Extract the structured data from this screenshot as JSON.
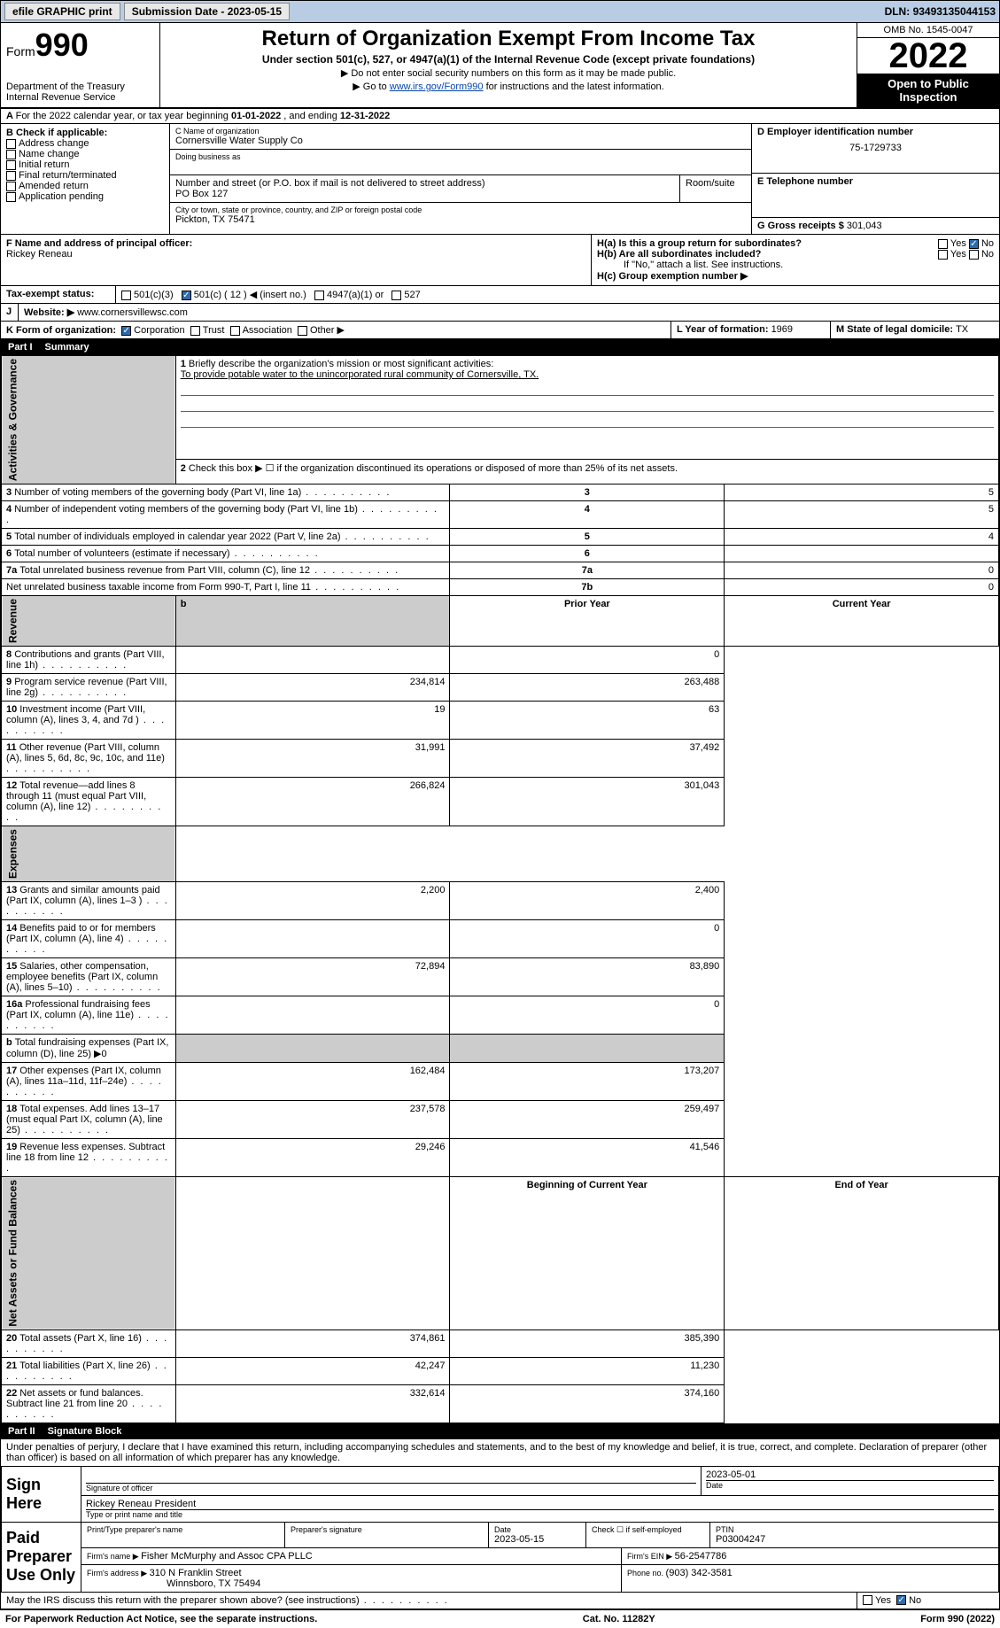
{
  "topbar": {
    "efile": "efile GRAPHIC print",
    "subdate_lbl": "Submission Date - ",
    "subdate": "2023-05-15",
    "dln_lbl": "DLN: ",
    "dln": "93493135044153"
  },
  "header": {
    "form_pre": "Form",
    "form_num": "990",
    "dept": "Department of the Treasury",
    "irs": "Internal Revenue Service",
    "title": "Return of Organization Exempt From Income Tax",
    "sub": "Under section 501(c), 527, or 4947(a)(1) of the Internal Revenue Code (except private foundations)",
    "note1": "▶ Do not enter social security numbers on this form as it may be made public.",
    "note2_pre": "▶ Go to ",
    "note2_link": "www.irs.gov/Form990",
    "note2_post": " for instructions and the latest information.",
    "omb": "OMB No. 1545-0047",
    "year": "2022",
    "open": "Open to Public Inspection"
  },
  "A": {
    "text": "For the 2022 calendar year, or tax year beginning ",
    "begin": "01-01-2022",
    "mid": " , and ending ",
    "end": "12-31-2022"
  },
  "B": {
    "lbl": "B Check if applicable:",
    "opts": [
      "Address change",
      "Name change",
      "Initial return",
      "Final return/terminated",
      "Amended return",
      "Application pending"
    ]
  },
  "C": {
    "name_lbl": "C Name of organization",
    "name": "Cornersville Water Supply Co",
    "dba_lbl": "Doing business as",
    "addr_lbl": "Number and street (or P.O. box if mail is not delivered to street address)",
    "room_lbl": "Room/suite",
    "addr": "PO Box 127",
    "city_lbl": "City or town, state or province, country, and ZIP or foreign postal code",
    "city": "Pickton, TX  75471"
  },
  "D": {
    "lbl": "D Employer identification number",
    "val": "75-1729733"
  },
  "E": {
    "lbl": "E Telephone number"
  },
  "G": {
    "lbl": "G Gross receipts $ ",
    "val": "301,043"
  },
  "F": {
    "lbl": "F  Name and address of principal officer:",
    "name": "Rickey Reneau"
  },
  "H": {
    "a": "H(a)  Is this a group return for subordinates?",
    "b": "H(b)  Are all subordinates included?",
    "note": "If \"No,\" attach a list. See instructions.",
    "c": "H(c)  Group exemption number ▶",
    "yes": "Yes",
    "no": "No"
  },
  "I": {
    "lbl": "Tax-exempt status:",
    "o1": "501(c)(3)",
    "o2": "501(c) ( 12 ) ◀ (insert no.)",
    "o3": "4947(a)(1) or",
    "o4": "527"
  },
  "J": {
    "lbl": "Website: ▶ ",
    "val": "www.cornersvillewsc.com"
  },
  "K": {
    "lbl": "K Form of organization:",
    "o1": "Corporation",
    "o2": "Trust",
    "o3": "Association",
    "o4": "Other ▶"
  },
  "L": {
    "lbl": "L Year of formation: ",
    "val": "1969"
  },
  "M": {
    "lbl": "M State of legal domicile: ",
    "val": "TX"
  },
  "part1": {
    "bar": "Part I",
    "title": "Summary",
    "l1": "Briefly describe the organization's mission or most significant activities:",
    "mission": "To provide potable water to the unincorporated rural community of Cornersville, TX.",
    "l2": "Check this box ▶ ☐  if the organization discontinued its operations or disposed of more than 25% of its net assets.",
    "rows_gov": [
      {
        "n": "3",
        "t": "Number of voting members of the governing body (Part VI, line 1a)",
        "c": "3",
        "v": "5"
      },
      {
        "n": "4",
        "t": "Number of independent voting members of the governing body (Part VI, line 1b)",
        "c": "4",
        "v": "5"
      },
      {
        "n": "5",
        "t": "Total number of individuals employed in calendar year 2022 (Part V, line 2a)",
        "c": "5",
        "v": "4"
      },
      {
        "n": "6",
        "t": "Total number of volunteers (estimate if necessary)",
        "c": "6",
        "v": ""
      },
      {
        "n": "7a",
        "t": "Total unrelated business revenue from Part VIII, column (C), line 12",
        "c": "7a",
        "v": "0"
      },
      {
        "n": "",
        "t": "Net unrelated business taxable income from Form 990-T, Part I, line 11",
        "c": "7b",
        "v": "0"
      }
    ],
    "hdr_prior": "Prior Year",
    "hdr_curr": "Current Year",
    "rows_rev": [
      {
        "n": "8",
        "t": "Contributions and grants (Part VIII, line 1h)",
        "p": "",
        "c": "0"
      },
      {
        "n": "9",
        "t": "Program service revenue (Part VIII, line 2g)",
        "p": "234,814",
        "c": "263,488"
      },
      {
        "n": "10",
        "t": "Investment income (Part VIII, column (A), lines 3, 4, and 7d )",
        "p": "19",
        "c": "63"
      },
      {
        "n": "11",
        "t": "Other revenue (Part VIII, column (A), lines 5, 6d, 8c, 9c, 10c, and 11e)",
        "p": "31,991",
        "c": "37,492"
      },
      {
        "n": "12",
        "t": "Total revenue—add lines 8 through 11 (must equal Part VIII, column (A), line 12)",
        "p": "266,824",
        "c": "301,043"
      }
    ],
    "rows_exp": [
      {
        "n": "13",
        "t": "Grants and similar amounts paid (Part IX, column (A), lines 1–3 )",
        "p": "2,200",
        "c": "2,400"
      },
      {
        "n": "14",
        "t": "Benefits paid to or for members (Part IX, column (A), line 4)",
        "p": "",
        "c": "0"
      },
      {
        "n": "15",
        "t": "Salaries, other compensation, employee benefits (Part IX, column (A), lines 5–10)",
        "p": "72,894",
        "c": "83,890"
      },
      {
        "n": "16a",
        "t": "Professional fundraising fees (Part IX, column (A), line 11e)",
        "p": "",
        "c": "0"
      },
      {
        "n": "b",
        "t": "Total fundraising expenses (Part IX, column (D), line 25) ▶0",
        "p": "—",
        "c": "—"
      },
      {
        "n": "17",
        "t": "Other expenses (Part IX, column (A), lines 11a–11d, 11f–24e)",
        "p": "162,484",
        "c": "173,207"
      },
      {
        "n": "18",
        "t": "Total expenses. Add lines 13–17 (must equal Part IX, column (A), line 25)",
        "p": "237,578",
        "c": "259,497"
      },
      {
        "n": "19",
        "t": "Revenue less expenses. Subtract line 18 from line 12",
        "p": "29,246",
        "c": "41,546"
      }
    ],
    "hdr_beg": "Beginning of Current Year",
    "hdr_end": "End of Year",
    "rows_net": [
      {
        "n": "20",
        "t": "Total assets (Part X, line 16)",
        "p": "374,861",
        "c": "385,390"
      },
      {
        "n": "21",
        "t": "Total liabilities (Part X, line 26)",
        "p": "42,247",
        "c": "11,230"
      },
      {
        "n": "22",
        "t": "Net assets or fund balances. Subtract line 21 from line 20",
        "p": "332,614",
        "c": "374,160"
      }
    ],
    "side_gov": "Activities & Governance",
    "side_rev": "Revenue",
    "side_exp": "Expenses",
    "side_net": "Net Assets or Fund Balances"
  },
  "part2": {
    "bar": "Part II",
    "title": "Signature Block",
    "decl": "Under penalties of perjury, I declare that I have examined this return, including accompanying schedules and statements, and to the best of my knowledge and belief, it is true, correct, and complete. Declaration of preparer (other than officer) is based on all information of which preparer has any knowledge.",
    "sign": "Sign Here",
    "sigoff": "Signature of officer",
    "date": "Date",
    "sigdate": "2023-05-01",
    "officer": "Rickey Reneau  President",
    "typ": "Type or print name and title",
    "paid": "Paid Preparer Use Only",
    "pname_lbl": "Print/Type preparer's name",
    "psig_lbl": "Preparer's signature",
    "pdate_lbl": "Date",
    "pdate": "2023-05-15",
    "chkif": "Check ☐ if self-employed",
    "ptin_lbl": "PTIN",
    "ptin": "P03004247",
    "firm_lbl": "Firm's name    ▶ ",
    "firm": "Fisher McMurphy and Assoc CPA PLLC",
    "ein_lbl": "Firm's EIN ▶ ",
    "ein": "56-2547786",
    "faddr_lbl": "Firm's address ▶ ",
    "faddr1": "310 N Franklin Street",
    "faddr2": "Winnsboro, TX  75494",
    "phone_lbl": "Phone no. ",
    "phone": "(903) 342-3581",
    "discuss": "May the IRS discuss this return with the preparer shown above? (see instructions)"
  },
  "footer": {
    "l": "For Paperwork Reduction Act Notice, see the separate instructions.",
    "c": "Cat. No. 11282Y",
    "r": "Form 990 (2022)"
  }
}
